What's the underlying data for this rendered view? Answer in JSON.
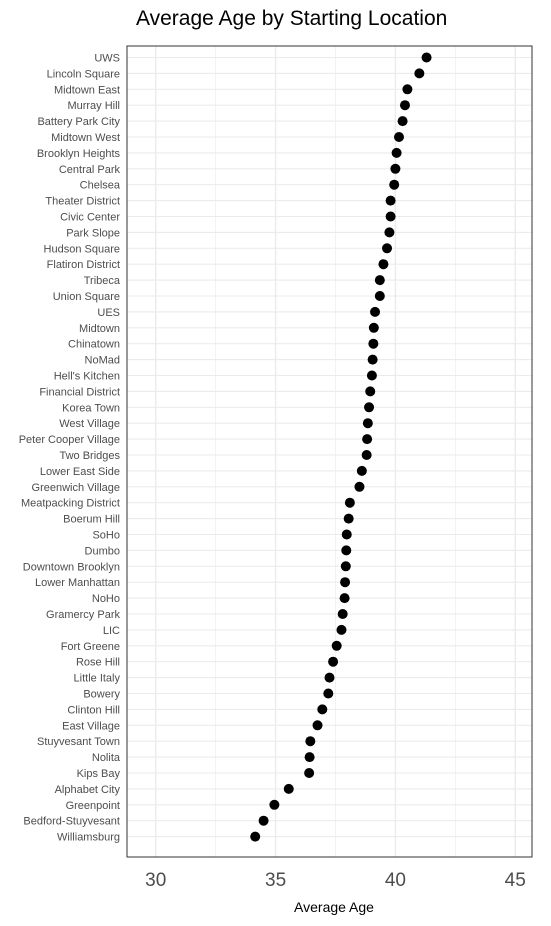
{
  "chart_data": {
    "type": "scatter",
    "title": "Average Age by Starting Location",
    "xlabel": "Average Age",
    "ylabel": "",
    "xlim": [
      28.8,
      45.7
    ],
    "xticks": [
      30,
      35,
      40,
      45
    ],
    "grid": true,
    "legend": "none",
    "categories": [
      "UWS",
      "Lincoln Square",
      "Midtown East",
      "Murray Hill",
      "Battery Park City",
      "Midtown West",
      "Brooklyn Heights",
      "Central Park",
      "Chelsea",
      "Theater District",
      "Civic Center",
      "Park Slope",
      "Hudson Square",
      "Flatiron District",
      "Tribeca",
      "Union Square",
      "UES",
      "Midtown",
      "Chinatown",
      "NoMad",
      "Hell's Kitchen",
      "Financial District",
      "Korea Town",
      "West Village",
      "Peter Cooper Village",
      "Two Bridges",
      "Lower East Side",
      "Greenwich Village",
      "Meatpacking District",
      "Boerum Hill",
      "SoHo",
      "Dumbo",
      "Downtown Brooklyn",
      "Lower Manhattan",
      "NoHo",
      "Gramercy Park",
      "LIC",
      "Fort Greene",
      "Rose Hill",
      "Little Italy",
      "Bowery",
      "Clinton Hill",
      "East Village",
      "Stuyvesant Town",
      "Nolita",
      "Kips Bay",
      "Alphabet City",
      "Greenpoint",
      "Bedford-Stuyvesant",
      "Williamsburg"
    ],
    "values": [
      41.3,
      41.0,
      40.5,
      40.4,
      40.3,
      40.15,
      40.05,
      40.0,
      39.95,
      39.8,
      39.8,
      39.75,
      39.65,
      39.5,
      39.35,
      39.35,
      39.15,
      39.1,
      39.08,
      39.05,
      39.02,
      38.95,
      38.9,
      38.85,
      38.82,
      38.8,
      38.6,
      38.5,
      38.1,
      38.05,
      37.97,
      37.95,
      37.93,
      37.9,
      37.88,
      37.8,
      37.75,
      37.55,
      37.4,
      37.25,
      37.2,
      36.95,
      36.75,
      36.45,
      36.42,
      36.4,
      35.55,
      34.95,
      34.5,
      34.15
    ],
    "point_color": "#000000",
    "grid_color": "#ebebeb",
    "panel_border_color": "#333333"
  }
}
